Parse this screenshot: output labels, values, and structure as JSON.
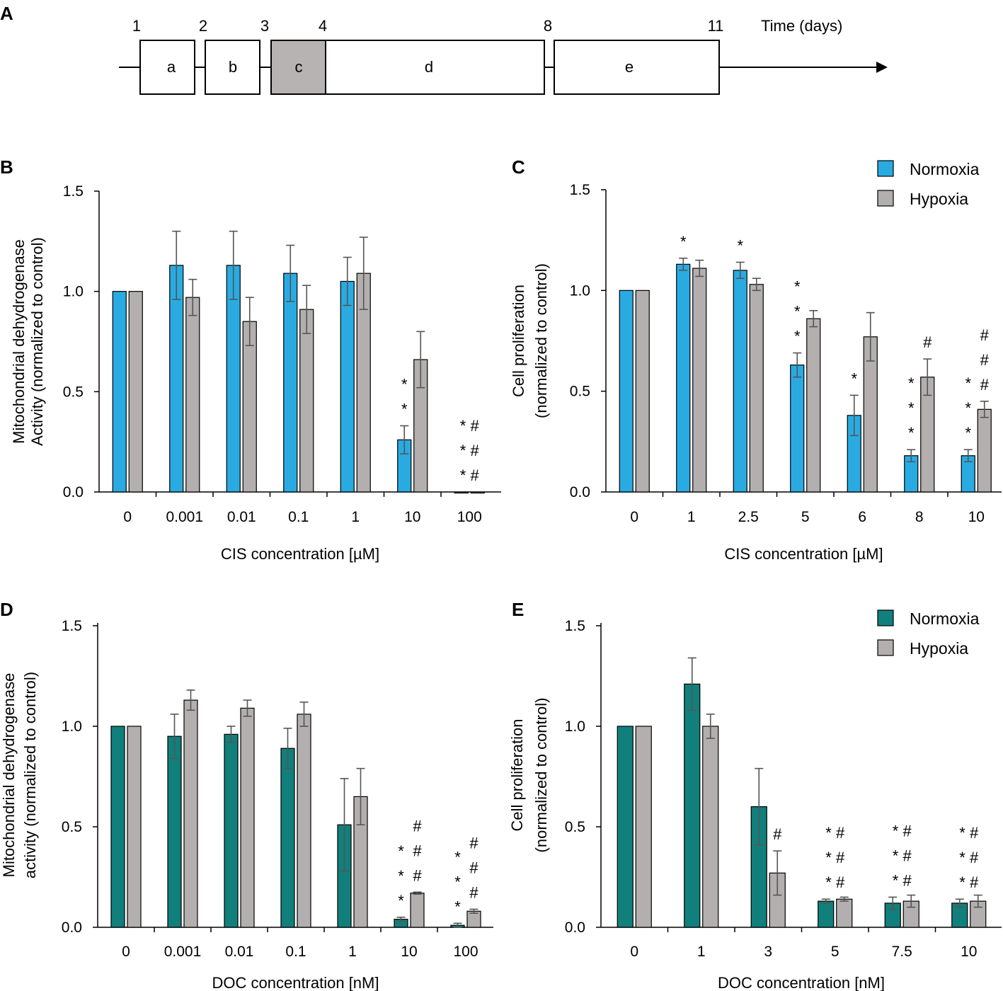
{
  "panel_a": {
    "label": "A",
    "time_label": "Time (days)",
    "day_ticks": [
      "1",
      "2",
      "3",
      "4",
      "8",
      "11"
    ],
    "phases": [
      "a",
      "b",
      "c",
      "d",
      "e"
    ],
    "highlight_color": "#b7b3b2"
  },
  "colors": {
    "normoxia_cis": "#29abe2",
    "normoxia_doc": "#117f7b",
    "hypoxia": "#b3afae",
    "error_bar": "#555555"
  },
  "chart_data": [
    {
      "panel": "B",
      "type": "bar",
      "title": "",
      "xlabel": "CIS concentration [µM]",
      "ylabel": [
        "Mitochondrial dehydrogenase",
        "Activity (normalized to control)"
      ],
      "ylim": [
        0,
        1.5
      ],
      "yticks": [
        "0.0",
        "0.5",
        "1.0",
        "1.5"
      ],
      "categories": [
        "0",
        "0.001",
        "0.01",
        "0.1",
        "1",
        "10",
        "100"
      ],
      "series": [
        {
          "name": "Normoxia",
          "values": [
            1.0,
            1.13,
            1.13,
            1.09,
            1.05,
            0.26,
            0.0
          ],
          "errors": [
            0,
            0.17,
            0.17,
            0.14,
            0.12,
            0.07,
            0
          ]
        },
        {
          "name": "Hypoxia",
          "values": [
            1.0,
            0.97,
            0.85,
            0.91,
            1.09,
            0.66,
            0.0
          ],
          "errors": [
            0,
            0.09,
            0.12,
            0.12,
            0.18,
            0.14,
            0
          ]
        }
      ],
      "annotations": [
        {
          "category": 5,
          "series": 0,
          "symbols": [
            "*",
            "*"
          ]
        },
        {
          "category": 6,
          "series": 0,
          "symbols": [
            "* #",
            "* #",
            "* #"
          ]
        }
      ],
      "legend": null
    },
    {
      "panel": "C",
      "type": "bar",
      "title": "",
      "xlabel": "CIS concentration [µM]",
      "ylabel": [
        "Cell proliferation",
        "(normalized to control)"
      ],
      "ylim": [
        0,
        1.5
      ],
      "yticks": [
        "0.0",
        "0.5",
        "1.0",
        "1.5"
      ],
      "categories": [
        "0",
        "1",
        "2.5",
        "5",
        "6",
        "8",
        "10"
      ],
      "series": [
        {
          "name": "Normoxia",
          "values": [
            1.0,
            1.13,
            1.1,
            0.63,
            0.38,
            0.18,
            0.18
          ],
          "errors": [
            0,
            0.03,
            0.04,
            0.06,
            0.1,
            0.03,
            0.03
          ]
        },
        {
          "name": "Hypoxia",
          "values": [
            1.0,
            1.11,
            1.03,
            0.86,
            0.77,
            0.57,
            0.41
          ],
          "errors": [
            0,
            0.04,
            0.03,
            0.04,
            0.12,
            0.09,
            0.04
          ]
        }
      ],
      "annotations": [
        {
          "category": 1,
          "series": 0,
          "symbols": [
            "*"
          ]
        },
        {
          "category": 2,
          "series": 0,
          "symbols": [
            "*"
          ]
        },
        {
          "category": 3,
          "series": 0,
          "symbols": [
            "*",
            "*",
            "*"
          ]
        },
        {
          "category": 4,
          "series": 0,
          "symbols": [
            "*"
          ]
        },
        {
          "category": 5,
          "series": 0,
          "symbols": [
            "*",
            "*",
            "*"
          ]
        },
        {
          "category": 5,
          "series": 1,
          "symbols": [
            "#"
          ]
        },
        {
          "category": 6,
          "series": 0,
          "symbols": [
            "*",
            "*",
            "*"
          ]
        },
        {
          "category": 6,
          "series": 1,
          "symbols": [
            "#",
            "#",
            "#"
          ]
        }
      ],
      "legend": {
        "entries": [
          "Normoxia",
          "Hypoxia"
        ],
        "position": "top-right"
      }
    },
    {
      "panel": "D",
      "type": "bar",
      "title": "",
      "xlabel": "DOC concentration [nM]",
      "ylabel": [
        "Mitochondrial dehydrogenase",
        "activity (normalized to control)"
      ],
      "ylim": [
        0,
        1.5
      ],
      "yticks": [
        "0.0",
        "0.5",
        "1.0",
        "1.5"
      ],
      "categories": [
        "0",
        "0.001",
        "0.01",
        "0.1",
        "1",
        "10",
        "100"
      ],
      "series": [
        {
          "name": "Normoxia",
          "values": [
            1.0,
            0.95,
            0.96,
            0.89,
            0.51,
            0.04,
            0.01
          ],
          "errors": [
            0,
            0.11,
            0.04,
            0.1,
            0.23,
            0.01,
            0.01
          ]
        },
        {
          "name": "Hypoxia",
          "values": [
            1.0,
            1.13,
            1.09,
            1.06,
            0.65,
            0.17,
            0.08
          ],
          "errors": [
            0,
            0.05,
            0.04,
            0.06,
            0.14,
            0.005,
            0.01
          ]
        }
      ],
      "annotations": [
        {
          "category": 5,
          "series": 0,
          "symbols": [
            "*",
            "*",
            "*"
          ]
        },
        {
          "category": 5,
          "series": 1,
          "symbols": [
            "#",
            "#",
            "#"
          ]
        },
        {
          "category": 6,
          "series": 0,
          "symbols": [
            "*",
            "*",
            "*"
          ]
        },
        {
          "category": 6,
          "series": 1,
          "symbols": [
            "#",
            "#",
            "#"
          ]
        }
      ],
      "legend": null
    },
    {
      "panel": "E",
      "type": "bar",
      "title": "",
      "xlabel": "DOC concentration [nM]",
      "ylabel": [
        "Cell proliferation",
        "(normalized to control)"
      ],
      "ylim": [
        0,
        1.5
      ],
      "yticks": [
        "0.0",
        "0.5",
        "1.0",
        "1.5"
      ],
      "categories": [
        "0",
        "1",
        "3",
        "5",
        "7.5",
        "10"
      ],
      "series": [
        {
          "name": "Normoxia",
          "values": [
            1.0,
            1.21,
            0.6,
            0.13,
            0.12,
            0.12
          ],
          "errors": [
            0,
            0.13,
            0.19,
            0.01,
            0.03,
            0.02
          ]
        },
        {
          "name": "Hypoxia",
          "values": [
            1.0,
            1.0,
            0.27,
            0.14,
            0.13,
            0.13
          ],
          "errors": [
            0,
            0.06,
            0.11,
            0.01,
            0.03,
            0.03
          ]
        }
      ],
      "annotations": [
        {
          "category": 2,
          "series": 1,
          "symbols": [
            "#"
          ]
        },
        {
          "category": 3,
          "series": 0,
          "symbols": [
            "* #",
            "* #",
            "* #"
          ]
        },
        {
          "category": 4,
          "series": 0,
          "symbols": [
            "* #",
            "* #",
            "* #"
          ]
        },
        {
          "category": 5,
          "series": 0,
          "symbols": [
            "* #",
            "* #",
            "* #"
          ]
        }
      ],
      "legend": {
        "entries": [
          "Normoxia",
          "Hypoxia"
        ],
        "position": "top-right"
      }
    }
  ]
}
